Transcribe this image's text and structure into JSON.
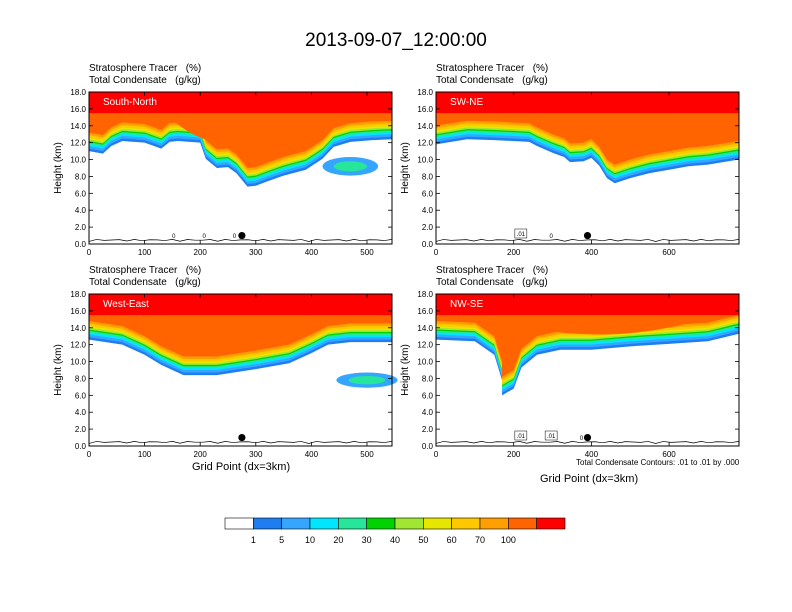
{
  "page_title": "2013-09-07_12:00:00",
  "panel_header": {
    "line1": "Stratosphere Tracer   (%)",
    "line2": "Total Condensate   (g/kg)"
  },
  "footnote": "Total Condensate Contours: .01 to .01 by .000",
  "colors": {
    "levels": [
      "#ffffff",
      "#1e7df0",
      "#36a5ff",
      "#00e6ff",
      "#25e69a",
      "#00d200",
      "#a0e632",
      "#e6e600",
      "#ffc800",
      "#ffa000",
      "#ff6400",
      "#ff0000"
    ]
  },
  "colorbar": {
    "labels": [
      "1",
      "5",
      "10",
      "20",
      "30",
      "40",
      "50",
      "60",
      "70",
      "100"
    ]
  },
  "chart_data": [
    {
      "type": "heatmap",
      "panel_label": "South-North",
      "xlabel": "",
      "ylabel": "Height (km)",
      "xlim": [
        0,
        545
      ],
      "ylim": [
        0,
        18
      ],
      "xticks": [
        "0",
        "100",
        "200",
        "300",
        "400",
        "500"
      ],
      "yticks": [
        "0.0",
        "2.0",
        "4.0",
        "6.0",
        "8.0",
        "10.0",
        "12.0",
        "14.0",
        "16.0",
        "18.0"
      ],
      "marker": {
        "x": 275,
        "y": 1.0
      },
      "contour_labels": [
        "0",
        "0",
        "0"
      ]
    },
    {
      "type": "heatmap",
      "panel_label": "SW-NE",
      "xlabel": "",
      "ylabel": "Height (km)",
      "xlim": [
        0,
        780
      ],
      "ylim": [
        0,
        18
      ],
      "xticks": [
        "0",
        "200",
        "400",
        "600"
      ],
      "yticks": [
        "0.0",
        "2.0",
        "4.0",
        "6.0",
        "8.0",
        "10.0",
        "12.0",
        "14.0",
        "16.0",
        "18.0"
      ],
      "marker": {
        "x": 390,
        "y": 1.0
      },
      "contour_labels": [
        ".01",
        "0"
      ]
    },
    {
      "type": "heatmap",
      "panel_label": "West-East",
      "xlabel": "Grid Point (dx=3km)",
      "ylabel": "Height (km)",
      "xlim": [
        0,
        545
      ],
      "ylim": [
        0,
        18
      ],
      "xticks": [
        "0",
        "100",
        "200",
        "300",
        "400",
        "500"
      ],
      "yticks": [
        "0.0",
        "2.0",
        "4.0",
        "6.0",
        "8.0",
        "10.0",
        "12.0",
        "14.0",
        "16.0",
        "18.0"
      ],
      "marker": {
        "x": 275,
        "y": 1.0
      },
      "contour_labels": []
    },
    {
      "type": "heatmap",
      "panel_label": "NW-SE",
      "xlabel": "Grid Point (dx=3km)",
      "ylabel": "Height (km)",
      "xlim": [
        0,
        780
      ],
      "ylim": [
        0,
        18
      ],
      "xticks": [
        "0",
        "200",
        "400",
        "600"
      ],
      "yticks": [
        "0.0",
        "2.0",
        "4.0",
        "6.0",
        "8.0",
        "10.0",
        "12.0",
        "14.0",
        "16.0",
        "18.0"
      ],
      "marker": {
        "x": 390,
        "y": 1.0
      },
      "contour_labels": [
        ".01",
        ".01",
        "0"
      ]
    }
  ]
}
